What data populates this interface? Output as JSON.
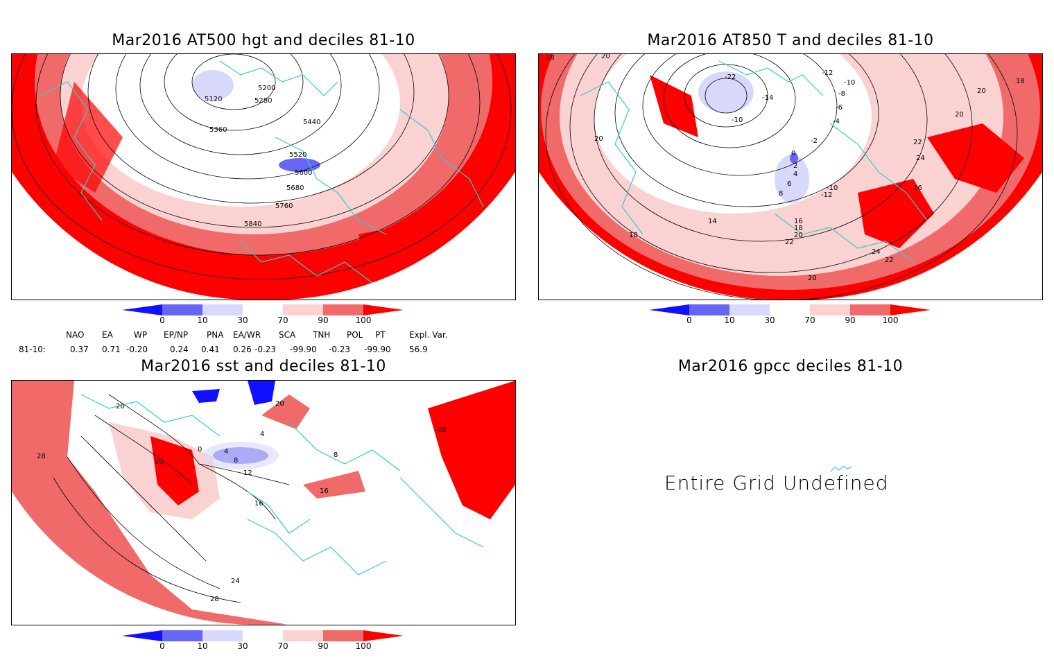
{
  "colors": {
    "d0_10": "#1010ff",
    "d10_30": "#6666f5",
    "d30_mid": "#d8d8fa",
    "d70_90": "#fad2d2",
    "d90_100": "#f06a6a",
    "d100": "#ff0000",
    "coast": "#33cccc"
  },
  "colorbar_ticks": [
    "0",
    "10",
    "30",
    "70",
    "90",
    "100"
  ],
  "panels": {
    "p1": {
      "title": "Mar2016 AT500 hgt and deciles 81-10",
      "contour_labels": [
        "5120",
        "5200",
        "5280",
        "5360",
        "5440",
        "5520",
        "5600",
        "5680",
        "5760",
        "5840"
      ]
    },
    "p2": {
      "title": "Mar2016 AT850 T and deciles 81-10",
      "contour_labels": [
        "18",
        "20",
        "20",
        "20",
        "-22",
        "-14",
        "-10",
        "-12",
        "-10",
        "-8",
        "-6",
        "-4",
        "-2",
        "0",
        "2",
        "4",
        "6",
        "8",
        "-10",
        "-12",
        "14",
        "16",
        "18",
        "20",
        "22",
        "24",
        "22",
        "20",
        "22",
        "24",
        "26",
        "18",
        "20",
        "18"
      ]
    },
    "p3": {
      "title": "Mar2016 sst and deciles 81-10",
      "contour_labels": [
        "20",
        "28",
        "20",
        "0",
        "4",
        "8",
        "12",
        "16",
        "20",
        "24",
        "28",
        "4",
        "8",
        "16",
        "28"
      ]
    },
    "p4": {
      "title": "Mar2016 gpcc deciles 81-10",
      "message": "Entire Grid Undefined"
    }
  },
  "indices": {
    "headers": [
      "NAO",
      "EA",
      "WP",
      "EP/NP",
      "PNA",
      "EA/WR",
      "SCA",
      "TNH",
      "POL",
      "PT",
      "Expl. Var."
    ],
    "row_label": "81-10:",
    "values": [
      "0.37",
      "0.71",
      "-0.20",
      "0.24",
      "0.41",
      "0.26",
      "-0.23",
      "-99.90",
      "-0.23",
      "-99.90",
      "56.9"
    ]
  }
}
